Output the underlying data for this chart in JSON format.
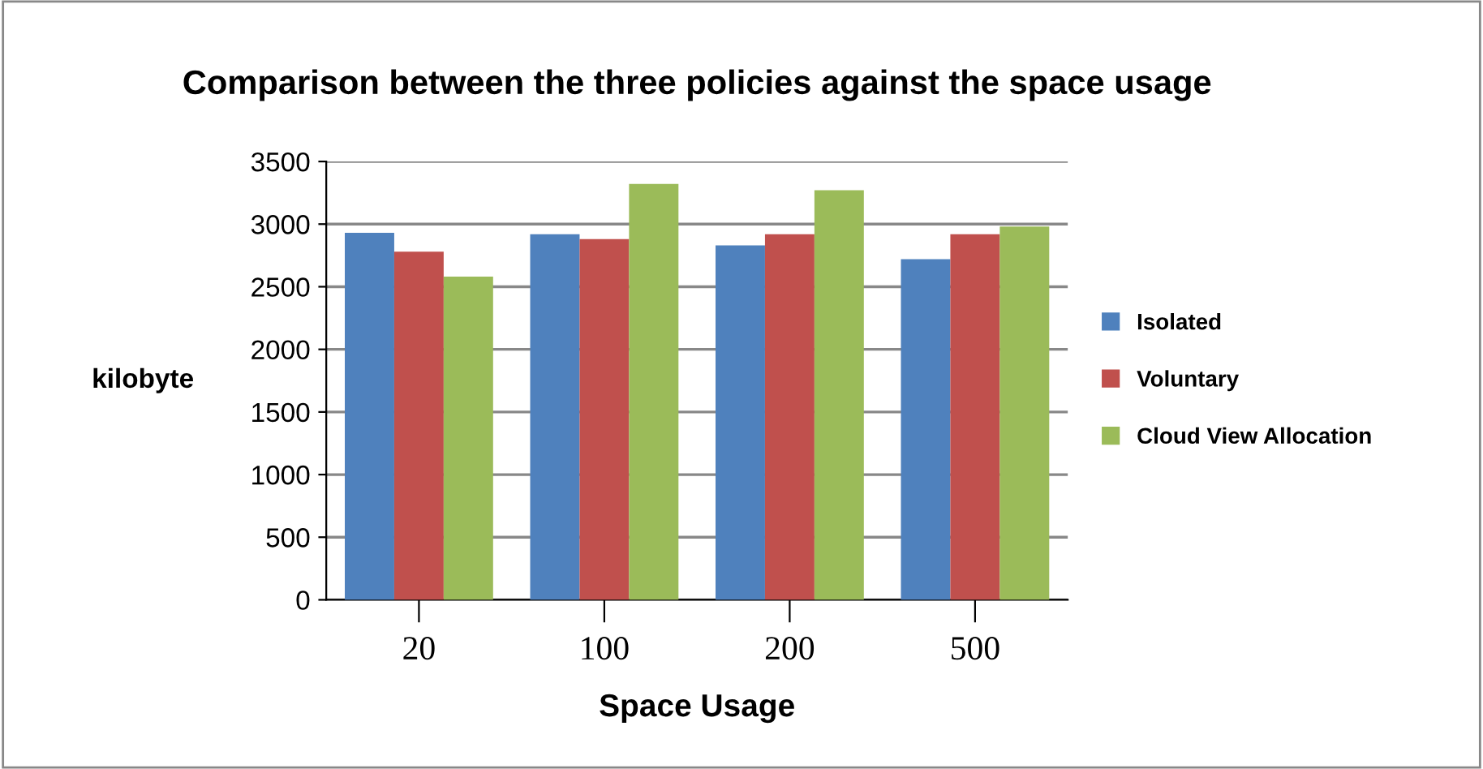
{
  "chart_data": {
    "type": "bar",
    "title": "Comparison between the three policies against the space usage",
    "xlabel": "Space Usage",
    "ylabel": "kilobyte",
    "categories": [
      "20",
      "100",
      "200",
      "500"
    ],
    "series": [
      {
        "name": "Isolated",
        "color": "#4f81bd",
        "values": [
          2930,
          2920,
          2830,
          2720
        ]
      },
      {
        "name": "Voluntary",
        "color": "#c0504d",
        "values": [
          2780,
          2880,
          2920,
          2920
        ]
      },
      {
        "name": "Cloud View Allocation",
        "color": "#9bbb59",
        "values": [
          2580,
          3320,
          3270,
          2980
        ]
      }
    ],
    "ylim": [
      0,
      3500
    ],
    "yticks": [
      0,
      500,
      1000,
      1500,
      2000,
      2500,
      3000,
      3500
    ],
    "grid": "y",
    "legend": "right"
  }
}
